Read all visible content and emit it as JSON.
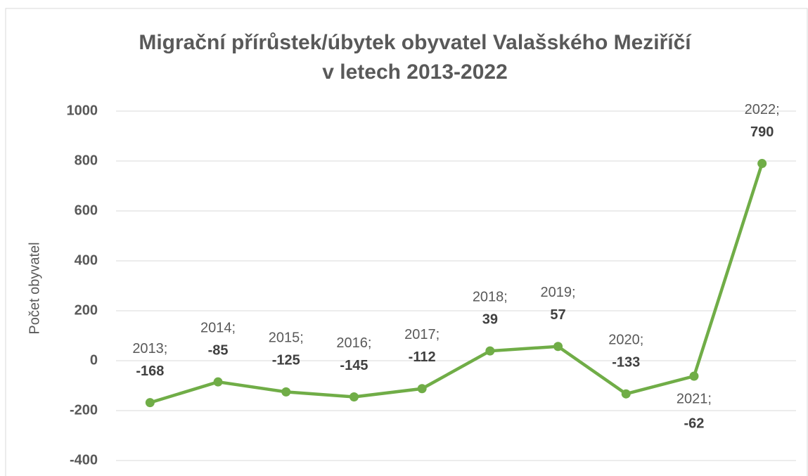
{
  "chart_data": {
    "type": "line",
    "title": [
      "Migrační přírůstek/úbytek obyvatel Valašského Meziříčí",
      "v letech 2013-2022"
    ],
    "y_label": "Počet obyvatel",
    "categories": [
      "2013;",
      "2014;",
      "2015;",
      "2016;",
      "2017;",
      "2018;",
      "2019;",
      "2020;",
      "2021;",
      "2022;"
    ],
    "series": [
      {
        "name": "Migrační přírůstek/úbytek",
        "color": "#70ad47",
        "values": [
          -168,
          -85,
          -125,
          -145,
          -112,
          39,
          57,
          -133,
          -62,
          790
        ]
      }
    ],
    "ylim": [
      -400,
      1000
    ],
    "yticks": [
      -400,
      -200,
      0,
      200,
      400,
      600,
      800,
      1000
    ],
    "grid": true
  }
}
